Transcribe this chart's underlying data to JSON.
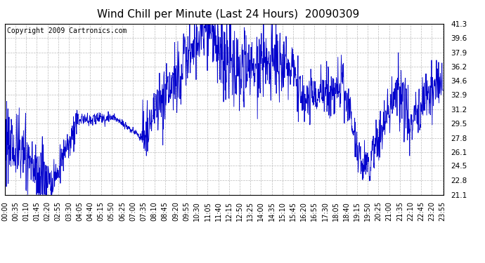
{
  "title": "Wind Chill per Minute (Last 24 Hours)  20090309",
  "copyright": "Copyright 2009 Cartronics.com",
  "line_color": "#0000CC",
  "background_color": "#ffffff",
  "plot_background": "#ffffff",
  "grid_color": "#bbbbbb",
  "ylim": [
    21.1,
    41.3
  ],
  "yticks": [
    21.1,
    22.8,
    24.5,
    26.1,
    27.8,
    29.5,
    31.2,
    32.9,
    34.6,
    36.2,
    37.9,
    39.6,
    41.3
  ],
  "xtick_labels": [
    "00:00",
    "00:35",
    "01:10",
    "01:45",
    "02:20",
    "02:55",
    "03:30",
    "04:05",
    "04:40",
    "05:15",
    "05:50",
    "06:25",
    "07:00",
    "07:35",
    "08:10",
    "08:45",
    "09:20",
    "09:55",
    "10:30",
    "11:05",
    "11:40",
    "12:15",
    "12:50",
    "13:25",
    "14:00",
    "14:35",
    "15:10",
    "15:45",
    "16:20",
    "16:55",
    "17:30",
    "18:05",
    "18:40",
    "19:15",
    "19:50",
    "20:25",
    "21:00",
    "21:35",
    "22:10",
    "22:45",
    "23:20",
    "23:55"
  ],
  "title_fontsize": 11,
  "copyright_fontsize": 7,
  "tick_fontsize": 7.5
}
